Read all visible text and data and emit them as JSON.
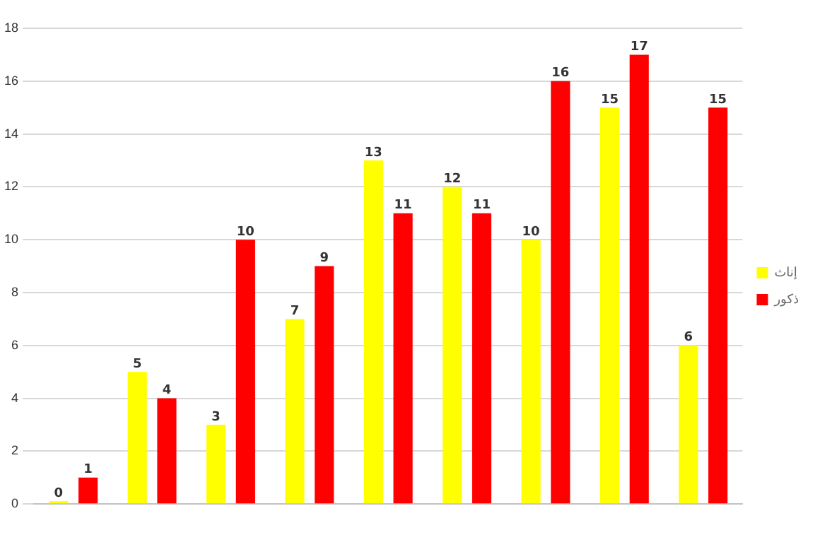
{
  "chart_data": {
    "type": "bar",
    "categories": [
      null,
      null,
      null,
      null,
      null,
      null,
      null,
      null,
      null
    ],
    "series": [
      {
        "name": "إناث",
        "color": "#ffff00",
        "values": [
          0,
          5,
          3,
          7,
          13,
          12,
          10,
          15,
          6
        ]
      },
      {
        "name": "ذكور",
        "color": "#ff0000",
        "values": [
          1,
          4,
          10,
          9,
          11,
          11,
          16,
          17,
          15
        ]
      }
    ],
    "ylim": [
      0,
      18
    ],
    "yticks": [
      0,
      2,
      4,
      6,
      8,
      10,
      12,
      14,
      16,
      18
    ],
    "grid": "y",
    "legend": "right",
    "data_labels": true
  }
}
